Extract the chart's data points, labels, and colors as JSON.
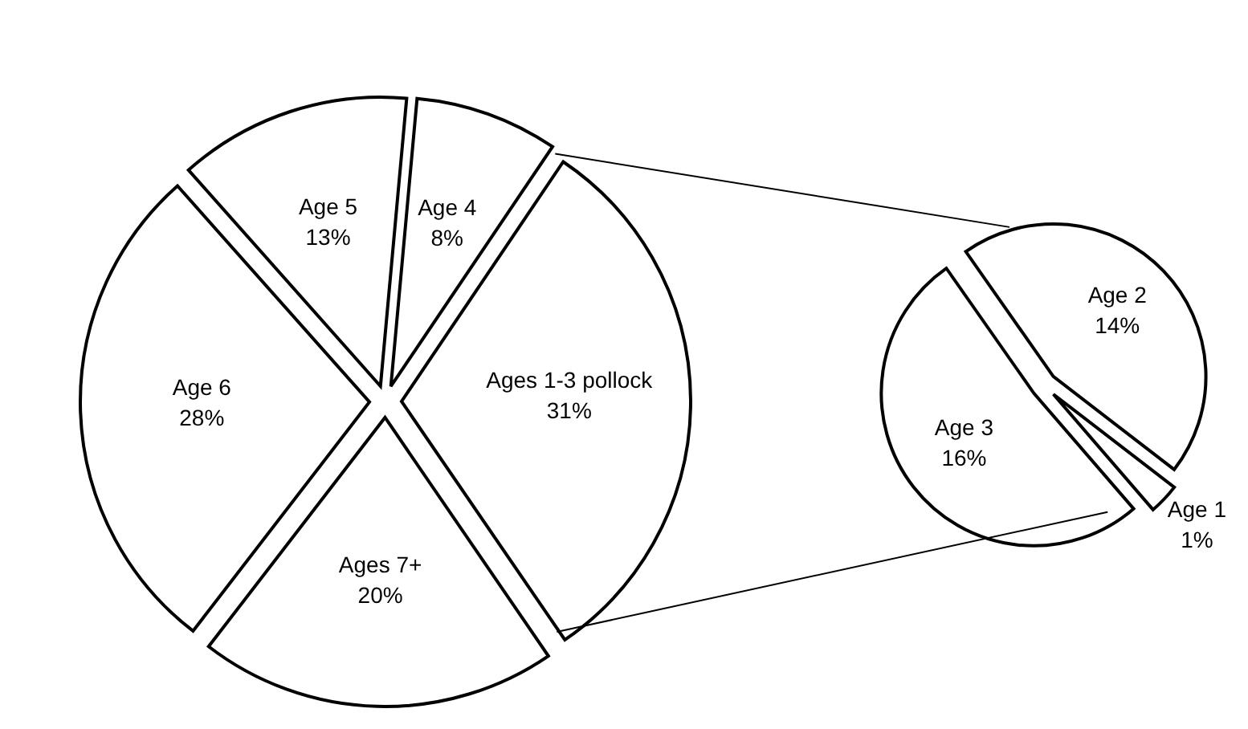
{
  "chart_data": [
    {
      "type": "pie",
      "categories": [
        "Ages 1-3 pollock",
        "Ages 7+",
        "Age 6",
        "Age 5",
        "Age 4"
      ],
      "values": [
        31,
        20,
        28,
        13,
        8
      ],
      "value_labels": [
        "31%",
        "20%",
        "28%",
        "13%",
        "8%"
      ],
      "colors": [
        "#ffffff",
        "#ffffff",
        "#ffffff",
        "#ffffff",
        "#ffffff"
      ]
    },
    {
      "type": "pie",
      "categories": [
        "Age 2",
        "Age 1",
        "Age 3"
      ],
      "values": [
        14,
        1,
        16
      ],
      "value_labels": [
        "14%",
        "1%",
        "16%"
      ],
      "colors": [
        "#ffffff",
        "#ffffff",
        "#ffffff"
      ]
    }
  ]
}
